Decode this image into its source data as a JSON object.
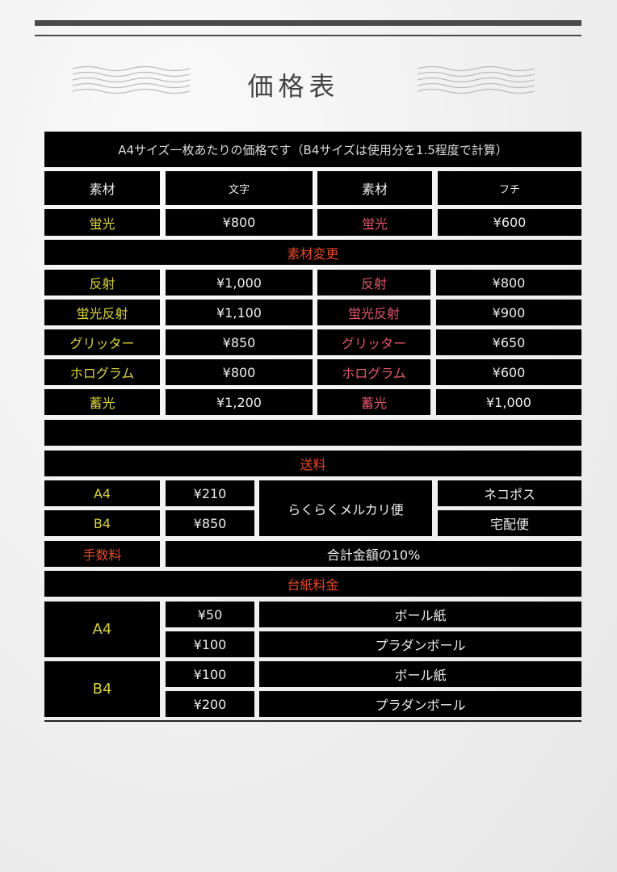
{
  "title": "価格表",
  "note": "A4サイズ一枚あたりの価格です（B4サイズは使用分を1.5程度で計算）",
  "colors": {
    "material_text": "#d9d23e",
    "material_border": "#e0566a",
    "section": "#e2492a",
    "cell_bg": "#000000"
  },
  "header": {
    "material1": "素材",
    "text_col": "文字",
    "material2": "素材",
    "border_col": "フチ"
  },
  "base": {
    "name": "蛍光",
    "text_price": "¥800",
    "border_price": "¥600"
  },
  "material_change": {
    "label": "素材変更",
    "rows": [
      {
        "name": "反射",
        "text_price": "¥1,000",
        "border_price": "¥800"
      },
      {
        "name": "蛍光反射",
        "text_price": "¥1,100",
        "border_price": "¥900"
      },
      {
        "name": "グリッター",
        "text_price": "¥850",
        "border_price": "¥650"
      },
      {
        "name": "ホログラム",
        "text_price": "¥800",
        "border_price": "¥600"
      },
      {
        "name": "蓄光",
        "text_price": "¥1,200",
        "border_price": "¥1,000"
      }
    ]
  },
  "shipping": {
    "label": "送料",
    "service": "らくらくメルカリ便",
    "rows": [
      {
        "size": "A4",
        "price": "¥210",
        "method": "ネコポス"
      },
      {
        "size": "B4",
        "price": "¥850",
        "method": "宅配便"
      }
    ]
  },
  "fee": {
    "label": "手数料",
    "value": "合計金額の10%"
  },
  "mount": {
    "label": "台紙料金",
    "groups": [
      {
        "size": "A4",
        "rows": [
          {
            "price": "¥50",
            "type": "ボール紙"
          },
          {
            "price": "¥100",
            "type": "プラダンボール"
          }
        ]
      },
      {
        "size": "B4",
        "rows": [
          {
            "price": "¥100",
            "type": "ボール紙"
          },
          {
            "price": "¥200",
            "type": "プラダンボール"
          }
        ]
      }
    ]
  }
}
